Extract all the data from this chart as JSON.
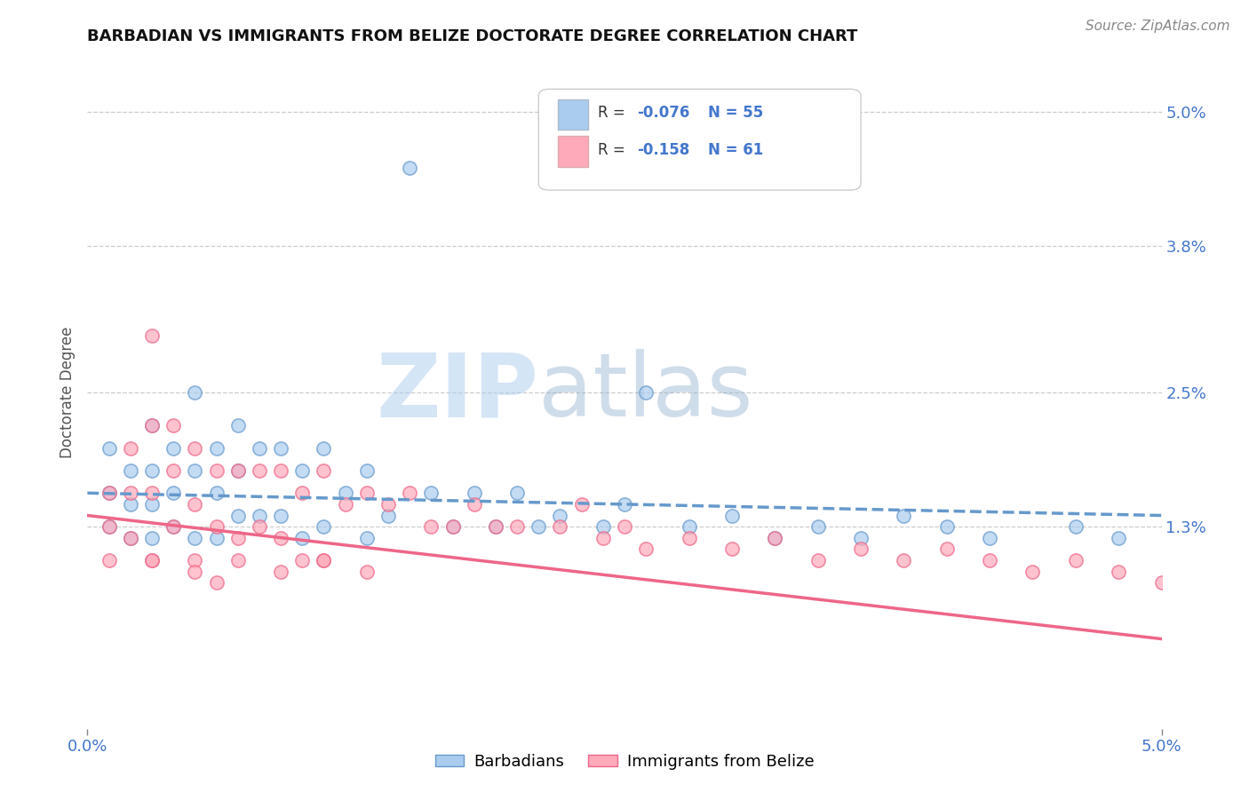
{
  "title": "BARBADIAN VS IMMIGRANTS FROM BELIZE DOCTORATE DEGREE CORRELATION CHART",
  "source": "Source: ZipAtlas.com",
  "ylabel": "Doctorate Degree",
  "xlim": [
    0.0,
    0.05
  ],
  "ylim": [
    -0.005,
    0.055
  ],
  "xticks": [
    0.0,
    0.05
  ],
  "xtick_labels": [
    "0.0%",
    "5.0%"
  ],
  "yticks": [
    0.05,
    0.038,
    0.025,
    0.013,
    0.0
  ],
  "ytick_labels": [
    "5.0%",
    "3.8%",
    "2.5%",
    "1.3%",
    ""
  ],
  "grid_yticks": [
    0.05,
    0.038,
    0.025,
    0.013
  ],
  "grid_color": "#cccccc",
  "background_color": "#ffffff",
  "watermark_text": "ZIP",
  "watermark_text2": "atlas",
  "blue_color": "#6699cc",
  "pink_color": "#ee6688",
  "blue_fill": "#aaccee",
  "pink_fill": "#ffaabb",
  "legend_R1": "R = ",
  "legend_R1_val": "-0.076",
  "legend_N1": "N = 55",
  "legend_R2": "R = ",
  "legend_R2_val": "-0.158",
  "legend_N2": "N = 61",
  "barbadian_x": [
    0.001,
    0.001,
    0.001,
    0.002,
    0.002,
    0.002,
    0.003,
    0.003,
    0.003,
    0.003,
    0.004,
    0.004,
    0.004,
    0.005,
    0.005,
    0.005,
    0.006,
    0.006,
    0.006,
    0.007,
    0.007,
    0.007,
    0.008,
    0.008,
    0.009,
    0.009,
    0.01,
    0.01,
    0.011,
    0.011,
    0.012,
    0.013,
    0.013,
    0.014,
    0.015,
    0.016,
    0.017,
    0.018,
    0.019,
    0.02,
    0.021,
    0.022,
    0.024,
    0.025,
    0.026,
    0.028,
    0.03,
    0.032,
    0.034,
    0.036,
    0.038,
    0.04,
    0.042,
    0.046,
    0.048
  ],
  "barbadian_y": [
    0.02,
    0.016,
    0.013,
    0.018,
    0.015,
    0.012,
    0.022,
    0.018,
    0.015,
    0.012,
    0.02,
    0.016,
    0.013,
    0.025,
    0.018,
    0.012,
    0.02,
    0.016,
    0.012,
    0.022,
    0.018,
    0.014,
    0.02,
    0.014,
    0.02,
    0.014,
    0.018,
    0.012,
    0.02,
    0.013,
    0.016,
    0.018,
    0.012,
    0.014,
    0.045,
    0.016,
    0.013,
    0.016,
    0.013,
    0.016,
    0.013,
    0.014,
    0.013,
    0.015,
    0.025,
    0.013,
    0.014,
    0.012,
    0.013,
    0.012,
    0.014,
    0.013,
    0.012,
    0.013,
    0.012
  ],
  "belize_x": [
    0.001,
    0.001,
    0.001,
    0.002,
    0.002,
    0.002,
    0.003,
    0.003,
    0.003,
    0.003,
    0.004,
    0.004,
    0.004,
    0.005,
    0.005,
    0.005,
    0.006,
    0.006,
    0.006,
    0.007,
    0.007,
    0.008,
    0.008,
    0.009,
    0.009,
    0.01,
    0.01,
    0.011,
    0.011,
    0.012,
    0.013,
    0.014,
    0.015,
    0.016,
    0.017,
    0.018,
    0.019,
    0.02,
    0.022,
    0.023,
    0.024,
    0.025,
    0.026,
    0.028,
    0.03,
    0.032,
    0.034,
    0.036,
    0.038,
    0.04,
    0.042,
    0.044,
    0.046,
    0.048,
    0.05,
    0.003,
    0.005,
    0.007,
    0.009,
    0.011,
    0.013
  ],
  "belize_y": [
    0.016,
    0.013,
    0.01,
    0.02,
    0.016,
    0.012,
    0.03,
    0.022,
    0.016,
    0.01,
    0.022,
    0.018,
    0.013,
    0.02,
    0.015,
    0.01,
    0.018,
    0.013,
    0.008,
    0.018,
    0.012,
    0.018,
    0.013,
    0.018,
    0.012,
    0.016,
    0.01,
    0.018,
    0.01,
    0.015,
    0.016,
    0.015,
    0.016,
    0.013,
    0.013,
    0.015,
    0.013,
    0.013,
    0.013,
    0.015,
    0.012,
    0.013,
    0.011,
    0.012,
    0.011,
    0.012,
    0.01,
    0.011,
    0.01,
    0.011,
    0.01,
    0.009,
    0.01,
    0.009,
    0.008,
    0.01,
    0.009,
    0.01,
    0.009,
    0.01,
    0.009
  ],
  "blue_line_x0": 0.0,
  "blue_line_x1": 0.05,
  "blue_line_y0": 0.016,
  "blue_line_y1": 0.014,
  "pink_line_x0": 0.0,
  "pink_line_x1": 0.05,
  "pink_line_y0": 0.014,
  "pink_line_y1": 0.003
}
